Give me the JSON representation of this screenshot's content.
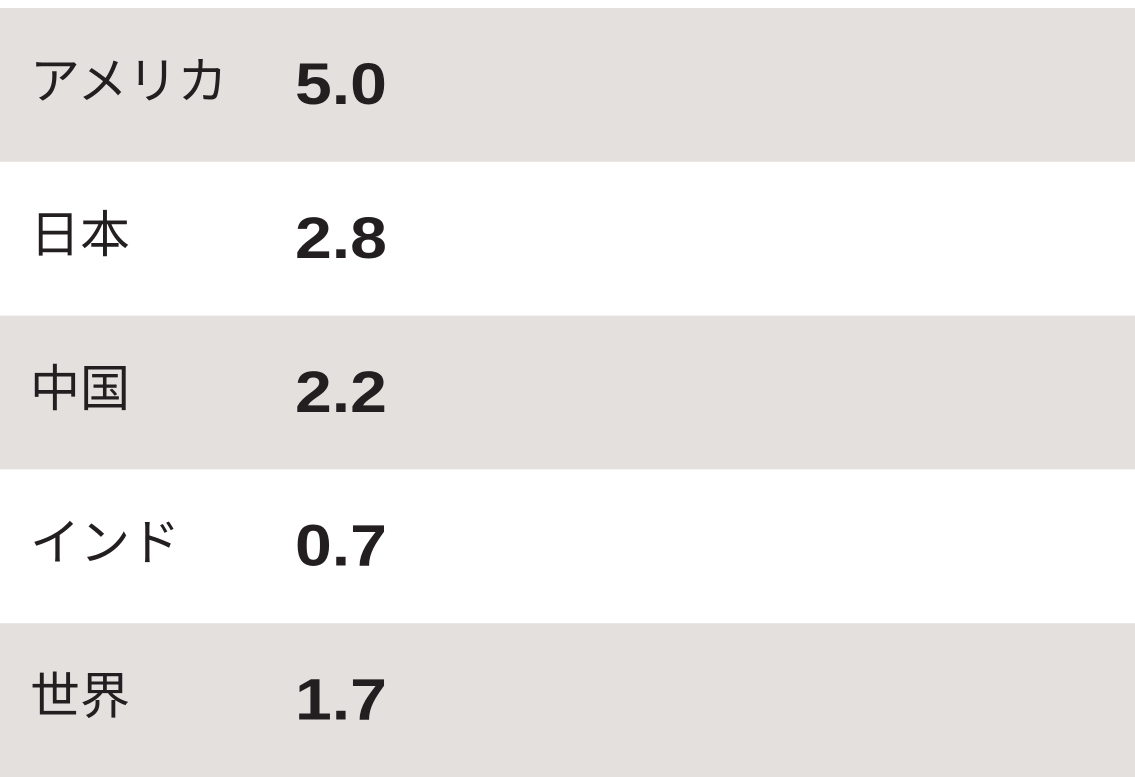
{
  "chart_data": {
    "type": "pictogram",
    "categories": [
      "アメリカ",
      "日本",
      "中国",
      "インド",
      "世界"
    ],
    "values": [
      5.0,
      2.8,
      2.2,
      0.7,
      1.7
    ],
    "value_labels": [
      "5.0",
      "2.8",
      "2.2",
      "0.7",
      "1.7"
    ]
  }
}
